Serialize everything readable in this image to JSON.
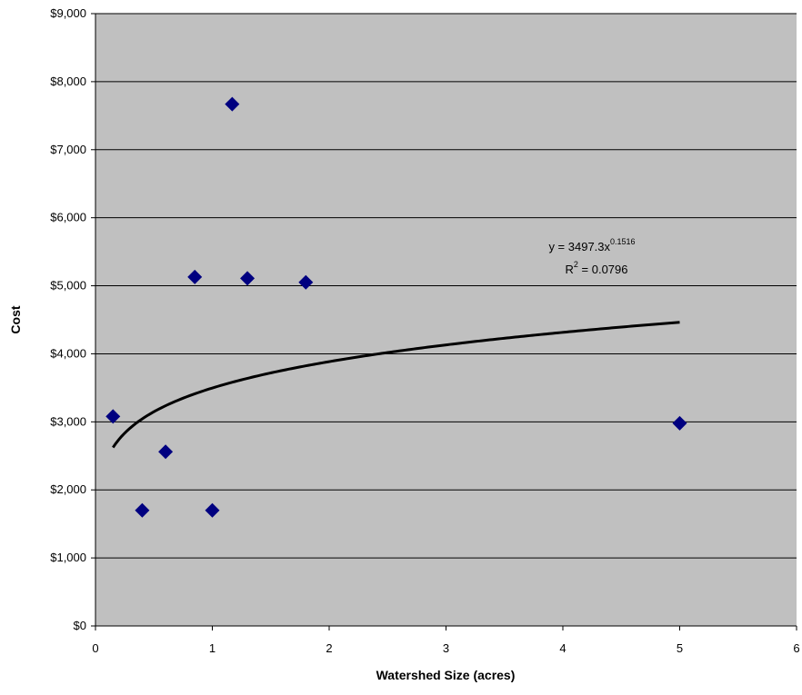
{
  "chart_data": {
    "type": "scatter",
    "x_label": "Watershed Size (acres)",
    "y_label": "Cost",
    "series": [
      {
        "color": "#000080",
        "x": [
          0.15,
          0.4,
          0.6,
          0.85,
          1.0,
          1.17,
          1.3,
          1.8,
          5.0
        ],
        "values": [
          3080,
          1700,
          2560,
          5130,
          1700,
          7670,
          5110,
          5050,
          2980
        ]
      }
    ],
    "trendline": {
      "coefficient": 3497.3,
      "exponent": 0.1516,
      "color": "#000000",
      "equation_text": "y = 3497.3x",
      "equation_sup": "0.1516",
      "r2_text": "R",
      "r2_sup": "2",
      "r2_value_text": " = 0.0796"
    },
    "xlim": [
      0,
      6
    ],
    "xticks": [
      0,
      1,
      2,
      3,
      4,
      5,
      6
    ],
    "ylim": [
      0,
      9000
    ],
    "yticks": [
      {
        "value": 0,
        "label": "$0"
      },
      {
        "value": 1000,
        "label": "$1,000"
      },
      {
        "value": 2000,
        "label": "$2,000"
      },
      {
        "value": 3000,
        "label": "$3,000"
      },
      {
        "value": 4000,
        "label": "$4,000"
      },
      {
        "value": 5000,
        "label": "$5,000"
      },
      {
        "value": 6000,
        "label": "$6,000"
      },
      {
        "value": 7000,
        "label": "$7,000"
      },
      {
        "value": 8000,
        "label": "$8,000"
      },
      {
        "value": 9000,
        "label": "$9,000"
      }
    ],
    "grid": true,
    "plot_background": "#c0c0c0"
  }
}
